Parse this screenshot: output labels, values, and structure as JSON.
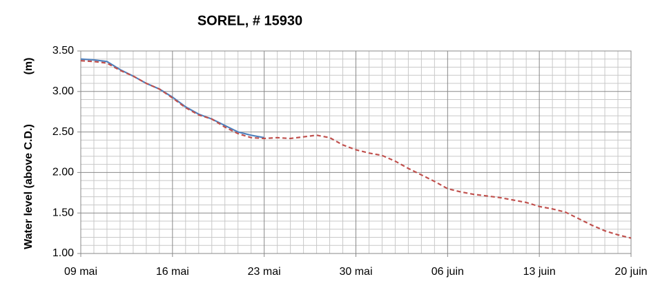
{
  "chart_data": {
    "type": "line",
    "title": "SOREL, # 15930",
    "ylabel": "Water level (above C.D.)",
    "yunit": "(m)",
    "categories": [
      "09 mai",
      null,
      null,
      null,
      null,
      null,
      null,
      "16 mai",
      null,
      null,
      null,
      null,
      null,
      null,
      "23 mai",
      null,
      null,
      null,
      null,
      null,
      null,
      "30 mai",
      null,
      null,
      null,
      null,
      null,
      null,
      "06 juin",
      null,
      null,
      null,
      null,
      null,
      null,
      "13 juin",
      null,
      null,
      null,
      null,
      null,
      null,
      "20 juin"
    ],
    "series": [
      {
        "color": "#4f81bd",
        "dash": false,
        "values": [
          3.4,
          3.39,
          3.37,
          3.27,
          3.19,
          3.1,
          3.03,
          2.93,
          2.81,
          2.72,
          2.66,
          2.58,
          2.5,
          2.46,
          2.43,
          null,
          null,
          null,
          null,
          null,
          null,
          null,
          null,
          null,
          null,
          null,
          null,
          null,
          null,
          null,
          null,
          null,
          null,
          null,
          null,
          null,
          null,
          null,
          null,
          null,
          null,
          null,
          null
        ]
      },
      {
        "color": "#c0504d",
        "dash": true,
        "values": [
          3.38,
          3.37,
          3.35,
          3.26,
          3.19,
          3.1,
          3.03,
          2.92,
          2.8,
          2.71,
          2.66,
          2.56,
          2.48,
          2.43,
          2.42,
          2.43,
          2.42,
          2.44,
          2.46,
          2.43,
          2.34,
          2.28,
          2.24,
          2.21,
          2.14,
          2.05,
          1.97,
          1.89,
          1.8,
          1.76,
          1.73,
          1.71,
          1.69,
          1.66,
          1.63,
          1.58,
          1.55,
          1.51,
          1.43,
          1.35,
          1.28,
          1.23,
          1.19
        ]
      }
    ],
    "ylim": [
      1.0,
      3.5
    ],
    "yticks": [
      {
        "value": 1.0,
        "label": "1.00"
      },
      {
        "value": 1.5,
        "label": "1.50"
      },
      {
        "value": 2.0,
        "label": "2.00"
      },
      {
        "value": 2.5,
        "label": "2.50"
      },
      {
        "value": 3.0,
        "label": "3.00"
      },
      {
        "value": 3.5,
        "label": "3.50"
      }
    ],
    "minor_yticks": [
      1.1,
      1.2,
      1.3,
      1.4,
      1.6,
      1.7,
      1.8,
      1.9,
      2.1,
      2.2,
      2.3,
      2.4,
      2.6,
      2.7,
      2.8,
      2.9,
      3.1,
      3.2,
      3.3,
      3.4
    ],
    "grid": true
  }
}
